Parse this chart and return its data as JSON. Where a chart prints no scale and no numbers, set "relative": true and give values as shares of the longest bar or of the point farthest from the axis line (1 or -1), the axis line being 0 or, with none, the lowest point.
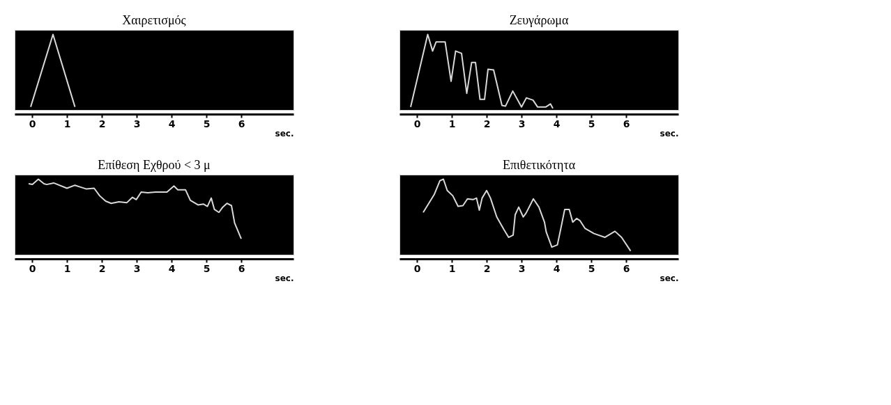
{
  "chart_data": [
    {
      "type": "line",
      "title": "Χαιρετισμός",
      "xlabel": "sec.",
      "relative": true,
      "xlim": [
        -0.5,
        7.5
      ],
      "xticks": [
        0,
        1,
        2,
        3,
        4,
        5,
        6
      ],
      "grid": false,
      "series": [
        {
          "color": "#d9d9d9",
          "x": [
            -0.04,
            0.6,
            1.23
          ],
          "values": [
            0.04,
            1,
            0.04
          ]
        }
      ]
    },
    {
      "type": "line",
      "title": "Ζευγάρωμα",
      "xlabel": "sec.",
      "relative": true,
      "xlim": [
        -0.5,
        7.5
      ],
      "xticks": [
        0,
        1,
        2,
        3,
        4,
        5,
        6
      ],
      "grid": false,
      "series": [
        {
          "color": "#d9d9d9",
          "x": [
            -0.18,
            0.31,
            0.45,
            0.55,
            0.81,
            0.98,
            1.11,
            1.28,
            1.43,
            1.57,
            1.68,
            1.81,
            1.94,
            2.04,
            2.2,
            2.44,
            2.54,
            2.75,
            3.0,
            3.14,
            3.33,
            3.46,
            3.7,
            3.83,
            3.9
          ],
          "values": [
            0.04,
            1,
            0.78,
            0.9,
            0.9,
            0.38,
            0.78,
            0.75,
            0.22,
            0.63,
            0.63,
            0.14,
            0.14,
            0.54,
            0.53,
            0.06,
            0.05,
            0.25,
            0.04,
            0.16,
            0.13,
            0.04,
            0.04,
            0.08,
            0.02
          ]
        }
      ]
    },
    {
      "type": "line",
      "title": "Επίθεση Εχθρού < 3 μ",
      "xlabel": "sec.",
      "relative": true,
      "xlim": [
        -0.5,
        7.5
      ],
      "xticks": [
        0,
        1,
        2,
        3,
        4,
        5,
        6
      ],
      "grid": false,
      "series": [
        {
          "color": "#d9d9d9",
          "x": [
            -0.1,
            0.01,
            0.18,
            0.34,
            0.42,
            0.62,
            1.0,
            1.23,
            1.36,
            1.56,
            1.78,
            1.94,
            2.11,
            2.27,
            2.49,
            2.72,
            2.88,
            2.99,
            3.13,
            3.32,
            3.54,
            3.87,
            4.07,
            4.18,
            4.4,
            4.54,
            4.76,
            4.92,
            5.03,
            5.14,
            5.23,
            5.36,
            5.47,
            5.59,
            5.72,
            5.81,
            6.0
          ],
          "values": [
            0.94,
            0.93,
            1,
            0.94,
            0.93,
            0.95,
            0.88,
            0.92,
            0.9,
            0.87,
            0.88,
            0.78,
            0.71,
            0.68,
            0.7,
            0.69,
            0.76,
            0.73,
            0.83,
            0.82,
            0.83,
            0.83,
            0.91,
            0.86,
            0.86,
            0.72,
            0.66,
            0.67,
            0.64,
            0.75,
            0.6,
            0.56,
            0.63,
            0.68,
            0.65,
            0.42,
            0.21
          ]
        }
      ]
    },
    {
      "type": "line",
      "title": "Επιθετικότητα",
      "xlabel": "sec.",
      "relative": true,
      "xlim": [
        -0.5,
        7.5
      ],
      "xticks": [
        0,
        1,
        2,
        3,
        4,
        5,
        6
      ],
      "grid": false,
      "series": [
        {
          "color": "#d9d9d9",
          "x": [
            0.18,
            0.5,
            0.66,
            0.76,
            0.87,
            1.03,
            1.18,
            1.32,
            1.45,
            1.61,
            1.71,
            1.79,
            1.87,
            2.0,
            2.11,
            2.29,
            2.5,
            2.63,
            2.76,
            2.82,
            2.92,
            3.05,
            3.13,
            3.34,
            3.5,
            3.66,
            3.71,
            3.87,
            4.03,
            4.13,
            4.24,
            4.37,
            4.47,
            4.58,
            4.68,
            4.82,
            5.08,
            5.39,
            5.68,
            5.87,
            6.13
          ],
          "values": [
            0.56,
            0.8,
            0.98,
            1,
            0.85,
            0.78,
            0.64,
            0.65,
            0.74,
            0.73,
            0.75,
            0.59,
            0.75,
            0.85,
            0.75,
            0.5,
            0.33,
            0.23,
            0.26,
            0.53,
            0.63,
            0.5,
            0.55,
            0.74,
            0.63,
            0.43,
            0.3,
            0.1,
            0.13,
            0.35,
            0.6,
            0.6,
            0.43,
            0.48,
            0.45,
            0.35,
            0.28,
            0.23,
            0.31,
            0.23,
            0.05
          ]
        }
      ]
    }
  ]
}
